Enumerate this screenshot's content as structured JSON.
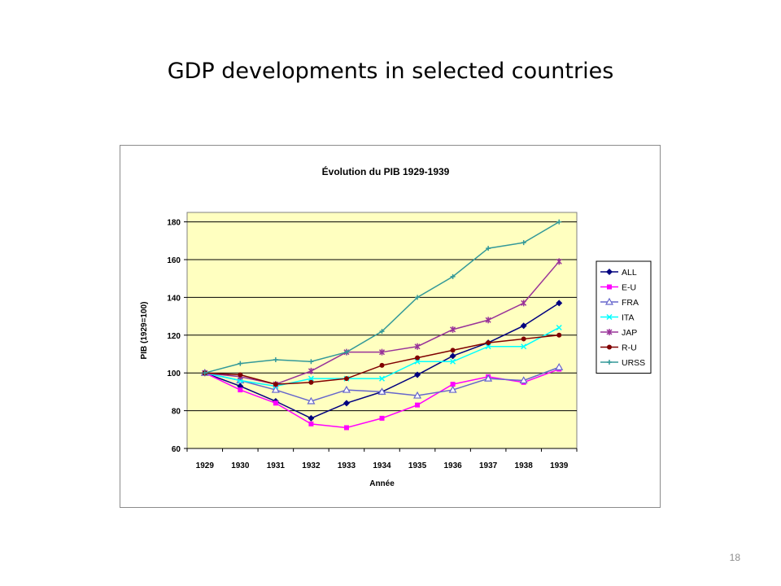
{
  "slide": {
    "title": "GDP developments in selected countries",
    "page_number": "18"
  },
  "chart_data": {
    "type": "line",
    "title": "Évolution du PIB 1929-1939",
    "xlabel": "Année",
    "ylabel": "PIB (1929=100)",
    "ylim": [
      60,
      185
    ],
    "yticks": [
      60,
      80,
      100,
      120,
      140,
      160,
      180
    ],
    "grid": true,
    "legend_position": "right",
    "plot_background": "#ffffc0",
    "categories": [
      "1929",
      "1930",
      "1931",
      "1932",
      "1933",
      "1934",
      "1935",
      "1936",
      "1937",
      "1938",
      "1939"
    ],
    "series": [
      {
        "name": "ALL",
        "color": "#00007f",
        "marker": "diamond",
        "values": [
          100,
          93,
          85,
          76,
          84,
          90,
          99,
          109,
          116,
          125,
          137
        ]
      },
      {
        "name": "E-U",
        "color": "#ff00ff",
        "marker": "square",
        "values": [
          100,
          91,
          84,
          73,
          71,
          76,
          83,
          94,
          98,
          95,
          102
        ]
      },
      {
        "name": "FRA",
        "color": "#6666cc",
        "marker": "triangle",
        "values": [
          100,
          96,
          91,
          85,
          91,
          90,
          88,
          91,
          97,
          96,
          103
        ]
      },
      {
        "name": "ITA",
        "color": "#00ffff",
        "marker": "cross",
        "values": [
          100,
          96,
          93,
          97,
          97,
          97,
          106,
          106,
          114,
          114,
          124
        ]
      },
      {
        "name": "JAP",
        "color": "#993399",
        "marker": "star",
        "values": [
          100,
          98,
          94,
          101,
          111,
          111,
          114,
          123,
          128,
          137,
          159
        ]
      },
      {
        "name": "R-U",
        "color": "#800000",
        "marker": "circle",
        "values": [
          100,
          99,
          94,
          95,
          97,
          104,
          108,
          112,
          116,
          118,
          120
        ]
      },
      {
        "name": "URSS",
        "color": "#339999",
        "marker": "plus",
        "values": [
          100,
          105,
          107,
          106,
          111,
          122,
          140,
          151,
          166,
          169,
          180
        ]
      }
    ]
  }
}
